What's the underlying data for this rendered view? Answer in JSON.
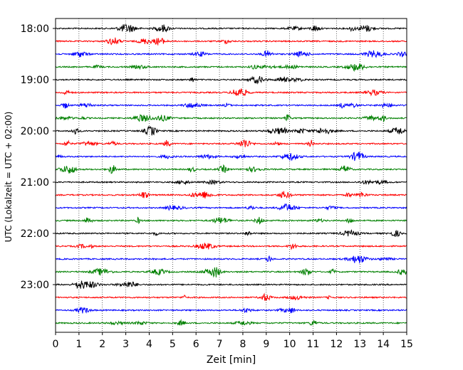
{
  "chart_data": {
    "type": "line",
    "title": "",
    "xlabel": "Zeit  [min]",
    "ylabel": "UTC (Lokalzeit = UTC + 02:00)",
    "xlim": [
      0,
      15
    ],
    "x_ticks": [
      "0",
      "1",
      "2",
      "3",
      "4",
      "5",
      "6",
      "7",
      "8",
      "9",
      "10",
      "11",
      "12",
      "13",
      "14",
      "15"
    ],
    "y_ticks": [
      "18:00",
      "19:00",
      "20:00",
      "21:00",
      "22:00",
      "23:00"
    ],
    "grid": "vertical-dotted",
    "trace_interval_min": 15,
    "trace_color_cycle": [
      "#000000",
      "#ff0000",
      "#0000ff",
      "#008000"
    ],
    "traces": [
      {
        "start": "18:00",
        "color": "#000000"
      },
      {
        "start": "18:15",
        "color": "#ff0000"
      },
      {
        "start": "18:30",
        "color": "#0000ff"
      },
      {
        "start": "18:45",
        "color": "#008000"
      },
      {
        "start": "19:00",
        "color": "#000000"
      },
      {
        "start": "19:15",
        "color": "#ff0000"
      },
      {
        "start": "19:30",
        "color": "#0000ff"
      },
      {
        "start": "19:45",
        "color": "#008000"
      },
      {
        "start": "20:00",
        "color": "#000000"
      },
      {
        "start": "20:15",
        "color": "#ff0000"
      },
      {
        "start": "20:30",
        "color": "#0000ff"
      },
      {
        "start": "20:45",
        "color": "#008000"
      },
      {
        "start": "21:00",
        "color": "#000000"
      },
      {
        "start": "21:15",
        "color": "#ff0000"
      },
      {
        "start": "21:30",
        "color": "#0000ff"
      },
      {
        "start": "21:45",
        "color": "#008000"
      },
      {
        "start": "22:00",
        "color": "#000000"
      },
      {
        "start": "22:15",
        "color": "#ff0000"
      },
      {
        "start": "22:30",
        "color": "#0000ff"
      },
      {
        "start": "22:45",
        "color": "#008000"
      },
      {
        "start": "23:00",
        "color": "#000000"
      },
      {
        "start": "23:15",
        "color": "#ff0000"
      },
      {
        "start": "23:30",
        "color": "#0000ff"
      },
      {
        "start": "23:45",
        "color": "#008000"
      }
    ]
  }
}
